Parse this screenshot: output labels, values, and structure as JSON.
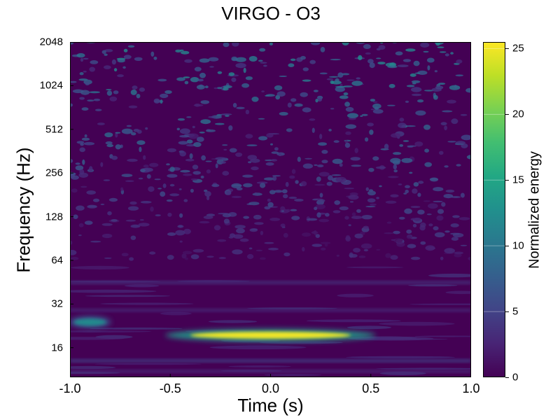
{
  "chart_data": {
    "type": "heatmap",
    "title": "VIRGO - O3",
    "xlabel": "Time (s)",
    "ylabel": "Frequency (Hz)",
    "xlim": [
      -1.0,
      1.0
    ],
    "ylim": [
      10,
      2048
    ],
    "yscale": "log2",
    "x_ticks": [
      "-1.0",
      "-0.5",
      "0.0",
      "0.5",
      "1.0"
    ],
    "x_tick_values": [
      -1.0,
      -0.5,
      0.0,
      0.5,
      1.0
    ],
    "y_ticks": [
      "16",
      "32",
      "64",
      "128",
      "256",
      "512",
      "1024",
      "2048"
    ],
    "y_tick_values": [
      16,
      32,
      64,
      128,
      256,
      512,
      1024,
      2048
    ],
    "colorbar": {
      "label": "Normalized energy",
      "range": [
        0,
        25.5
      ],
      "ticks": [
        "0",
        "5",
        "10",
        "15",
        "20",
        "25"
      ],
      "tick_values": [
        0,
        5,
        10,
        15,
        20,
        25
      ],
      "colormap": "viridis"
    },
    "features": [
      {
        "kind": "blob",
        "t_start": -0.5,
        "t_end": 0.5,
        "freq": 19.5,
        "energy": 25
      },
      {
        "kind": "blob",
        "t_start": -1.0,
        "t_end": -0.8,
        "freq": 24,
        "energy": 12
      },
      {
        "kind": "band",
        "t_start": -1.0,
        "t_end": 1.0,
        "freq": 13,
        "energy": 5
      },
      {
        "kind": "band",
        "t_start": -1.0,
        "t_end": 1.0,
        "freq": 29,
        "energy": 3
      },
      {
        "kind": "band",
        "t_start": -1.0,
        "t_end": 1.0,
        "freq": 45,
        "energy": 4
      },
      {
        "kind": "band",
        "t_start": -1.0,
        "t_end": 1.0,
        "freq": 11,
        "energy": 3
      }
    ]
  },
  "colors": {
    "viridis_low": "#440154",
    "viridis_mid": "#21908d",
    "viridis_high": "#fde725"
  }
}
